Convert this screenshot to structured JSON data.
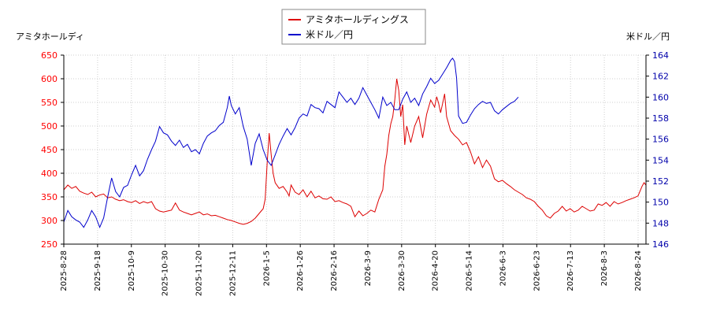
{
  "chart_data": {
    "type": "line",
    "left_axis_title": "アミタホールディ",
    "right_axis_title": "米ドル／円",
    "legend": [
      {
        "label": "アミタホールディングス",
        "color": "#dd0000"
      },
      {
        "label": "米ドル／円",
        "color": "#0000cc"
      }
    ],
    "legend_position": "top-center",
    "grid": true,
    "left_ylim": [
      250,
      650
    ],
    "left_ticks": [
      "250",
      "300",
      "350",
      "400",
      "450",
      "500",
      "550",
      "600",
      "650"
    ],
    "right_ylim": [
      146,
      164
    ],
    "right_ticks": [
      "146",
      "148",
      "150",
      "152",
      "154",
      "156",
      "158",
      "160",
      "162",
      "164"
    ],
    "x_ticks": [
      "2025-8-28",
      "2025-9-18",
      "2025-10-9",
      "2025-10-30",
      "2025-11-20",
      "2025-12-11",
      "2026-1-5",
      "2026-1-26",
      "2026-2-16",
      "2026-3-9",
      "2026-3-30",
      "2026-4-20",
      "2026-5-14",
      "2026-6-3",
      "2026-6-23",
      "2026-7-13",
      "2026-8-3",
      "2026-8-24"
    ],
    "series": [
      {
        "name": "アミタホールディングス",
        "axis": "left",
        "color": "#dd0000",
        "points": [
          [
            0,
            365
          ],
          [
            2,
            375
          ],
          [
            4,
            368
          ],
          [
            6,
            372
          ],
          [
            8,
            362
          ],
          [
            10,
            358
          ],
          [
            12,
            355
          ],
          [
            14,
            360
          ],
          [
            16,
            350
          ],
          [
            18,
            354
          ],
          [
            20,
            356
          ],
          [
            22,
            348
          ],
          [
            24,
            350
          ],
          [
            26,
            345
          ],
          [
            28,
            342
          ],
          [
            30,
            344
          ],
          [
            32,
            340
          ],
          [
            34,
            338
          ],
          [
            36,
            342
          ],
          [
            38,
            336
          ],
          [
            40,
            340
          ],
          [
            42,
            337
          ],
          [
            44,
            340
          ],
          [
            46,
            325
          ],
          [
            48,
            320
          ],
          [
            50,
            318
          ],
          [
            52,
            320
          ],
          [
            54,
            322
          ],
          [
            56,
            337
          ],
          [
            58,
            322
          ],
          [
            60,
            318
          ],
          [
            62,
            315
          ],
          [
            64,
            312
          ],
          [
            66,
            315
          ],
          [
            68,
            318
          ],
          [
            70,
            312
          ],
          [
            72,
            314
          ],
          [
            74,
            310
          ],
          [
            76,
            311
          ],
          [
            78,
            308
          ],
          [
            80,
            305
          ],
          [
            82,
            302
          ],
          [
            84,
            300
          ],
          [
            86,
            297
          ],
          [
            88,
            294
          ],
          [
            90,
            292
          ],
          [
            92,
            294
          ],
          [
            94,
            298
          ],
          [
            96,
            305
          ],
          [
            98,
            315
          ],
          [
            100,
            325
          ],
          [
            101,
            345
          ],
          [
            102,
            420
          ],
          [
            103,
            485
          ],
          [
            104,
            440
          ],
          [
            105,
            400
          ],
          [
            106,
            380
          ],
          [
            108,
            368
          ],
          [
            110,
            372
          ],
          [
            112,
            360
          ],
          [
            113,
            352
          ],
          [
            114,
            375
          ],
          [
            116,
            360
          ],
          [
            118,
            355
          ],
          [
            120,
            365
          ],
          [
            122,
            350
          ],
          [
            124,
            362
          ],
          [
            126,
            348
          ],
          [
            128,
            352
          ],
          [
            130,
            346
          ],
          [
            132,
            345
          ],
          [
            134,
            350
          ],
          [
            136,
            340
          ],
          [
            138,
            342
          ],
          [
            140,
            338
          ],
          [
            142,
            335
          ],
          [
            144,
            330
          ],
          [
            146,
            308
          ],
          [
            148,
            320
          ],
          [
            150,
            310
          ],
          [
            152,
            315
          ],
          [
            154,
            322
          ],
          [
            156,
            318
          ],
          [
            158,
            345
          ],
          [
            160,
            365
          ],
          [
            161,
            415
          ],
          [
            162,
            440
          ],
          [
            163,
            480
          ],
          [
            164,
            505
          ],
          [
            165,
            520
          ],
          [
            166,
            555
          ],
          [
            167,
            600
          ],
          [
            168,
            575
          ],
          [
            169,
            520
          ],
          [
            170,
            545
          ],
          [
            171,
            460
          ],
          [
            172,
            500
          ],
          [
            174,
            465
          ],
          [
            176,
            500
          ],
          [
            178,
            520
          ],
          [
            180,
            475
          ],
          [
            182,
            525
          ],
          [
            184,
            555
          ],
          [
            186,
            540
          ],
          [
            187,
            562
          ],
          [
            188,
            548
          ],
          [
            189,
            528
          ],
          [
            190,
            548
          ],
          [
            191,
            568
          ],
          [
            192,
            520
          ],
          [
            194,
            490
          ],
          [
            196,
            480
          ],
          [
            198,
            472
          ],
          [
            200,
            460
          ],
          [
            202,
            465
          ],
          [
            204,
            445
          ],
          [
            206,
            420
          ],
          [
            208,
            435
          ],
          [
            210,
            412
          ],
          [
            212,
            428
          ],
          [
            214,
            415
          ],
          [
            216,
            388
          ],
          [
            218,
            382
          ],
          [
            220,
            385
          ],
          [
            222,
            378
          ],
          [
            224,
            372
          ],
          [
            226,
            365
          ],
          [
            228,
            360
          ],
          [
            230,
            355
          ],
          [
            232,
            348
          ],
          [
            234,
            345
          ],
          [
            236,
            340
          ],
          [
            238,
            330
          ],
          [
            240,
            322
          ],
          [
            242,
            310
          ],
          [
            244,
            305
          ],
          [
            246,
            315
          ],
          [
            248,
            320
          ],
          [
            250,
            330
          ],
          [
            252,
            320
          ],
          [
            254,
            325
          ],
          [
            256,
            318
          ],
          [
            258,
            322
          ],
          [
            260,
            330
          ],
          [
            262,
            325
          ],
          [
            264,
            320
          ],
          [
            266,
            322
          ],
          [
            268,
            335
          ],
          [
            270,
            332
          ],
          [
            272,
            338
          ],
          [
            274,
            330
          ],
          [
            276,
            340
          ],
          [
            278,
            335
          ],
          [
            280,
            338
          ],
          [
            282,
            342
          ],
          [
            284,
            345
          ],
          [
            286,
            348
          ],
          [
            288,
            352
          ],
          [
            290,
            372
          ],
          [
            291,
            380
          ],
          [
            292,
            375
          ]
        ]
      },
      {
        "name": "米ドル／円",
        "axis": "right",
        "color": "#0000cc",
        "points": [
          [
            0,
            148.1
          ],
          [
            2,
            149.2
          ],
          [
            4,
            148.6
          ],
          [
            6,
            148.3
          ],
          [
            8,
            148.1
          ],
          [
            10,
            147.6
          ],
          [
            12,
            148.3
          ],
          [
            14,
            149.2
          ],
          [
            16,
            148.6
          ],
          [
            18,
            147.6
          ],
          [
            20,
            148.5
          ],
          [
            22,
            150.5
          ],
          [
            24,
            152.3
          ],
          [
            26,
            151.0
          ],
          [
            28,
            150.5
          ],
          [
            30,
            151.4
          ],
          [
            32,
            151.6
          ],
          [
            34,
            152.6
          ],
          [
            36,
            153.5
          ],
          [
            38,
            152.5
          ],
          [
            40,
            153.0
          ],
          [
            42,
            154.1
          ],
          [
            44,
            155.0
          ],
          [
            46,
            155.8
          ],
          [
            48,
            157.2
          ],
          [
            50,
            156.6
          ],
          [
            52,
            156.4
          ],
          [
            54,
            155.8
          ],
          [
            56,
            155.4
          ],
          [
            58,
            155.9
          ],
          [
            60,
            155.2
          ],
          [
            62,
            155.5
          ],
          [
            64,
            154.8
          ],
          [
            66,
            155.0
          ],
          [
            68,
            154.6
          ],
          [
            70,
            155.6
          ],
          [
            72,
            156.3
          ],
          [
            74,
            156.6
          ],
          [
            76,
            156.8
          ],
          [
            78,
            157.3
          ],
          [
            80,
            157.6
          ],
          [
            82,
            159.0
          ],
          [
            83,
            160.1
          ],
          [
            84,
            159.2
          ],
          [
            86,
            158.4
          ],
          [
            88,
            159.0
          ],
          [
            90,
            157.2
          ],
          [
            92,
            156.0
          ],
          [
            94,
            153.5
          ],
          [
            96,
            155.6
          ],
          [
            98,
            156.5
          ],
          [
            100,
            155.0
          ],
          [
            102,
            154.0
          ],
          [
            104,
            153.5
          ],
          [
            106,
            154.5
          ],
          [
            108,
            155.5
          ],
          [
            110,
            156.3
          ],
          [
            112,
            157.0
          ],
          [
            114,
            156.4
          ],
          [
            116,
            157.1
          ],
          [
            118,
            158.0
          ],
          [
            120,
            158.4
          ],
          [
            122,
            158.2
          ],
          [
            124,
            159.3
          ],
          [
            126,
            159.0
          ],
          [
            128,
            158.9
          ],
          [
            130,
            158.5
          ],
          [
            132,
            159.6
          ],
          [
            134,
            159.3
          ],
          [
            136,
            159.0
          ],
          [
            138,
            160.5
          ],
          [
            140,
            160.0
          ],
          [
            142,
            159.5
          ],
          [
            144,
            159.9
          ],
          [
            146,
            159.3
          ],
          [
            148,
            159.9
          ],
          [
            150,
            160.9
          ],
          [
            152,
            160.2
          ],
          [
            154,
            159.5
          ],
          [
            156,
            158.8
          ],
          [
            158,
            158.0
          ],
          [
            160,
            160.0
          ],
          [
            162,
            159.2
          ],
          [
            164,
            159.5
          ],
          [
            166,
            158.8
          ],
          [
            168,
            158.8
          ],
          [
            170,
            159.8
          ],
          [
            172,
            160.5
          ],
          [
            174,
            159.5
          ],
          [
            176,
            159.9
          ],
          [
            178,
            159.2
          ],
          [
            180,
            160.3
          ],
          [
            182,
            161.0
          ],
          [
            184,
            161.8
          ],
          [
            186,
            161.3
          ],
          [
            188,
            161.6
          ],
          [
            190,
            162.2
          ],
          [
            192,
            162.8
          ],
          [
            194,
            163.5
          ],
          [
            195,
            163.7
          ],
          [
            196,
            163.4
          ],
          [
            197,
            161.8
          ],
          [
            198,
            158.2
          ],
          [
            200,
            157.5
          ],
          [
            202,
            157.6
          ],
          [
            204,
            158.3
          ],
          [
            206,
            158.9
          ],
          [
            208,
            159.3
          ],
          [
            210,
            159.6
          ],
          [
            212,
            159.4
          ],
          [
            214,
            159.5
          ],
          [
            216,
            158.7
          ],
          [
            218,
            158.4
          ],
          [
            220,
            158.8
          ],
          [
            222,
            159.1
          ],
          [
            224,
            159.4
          ],
          [
            226,
            159.6
          ],
          [
            228,
            160.0
          ]
        ]
      }
    ]
  }
}
